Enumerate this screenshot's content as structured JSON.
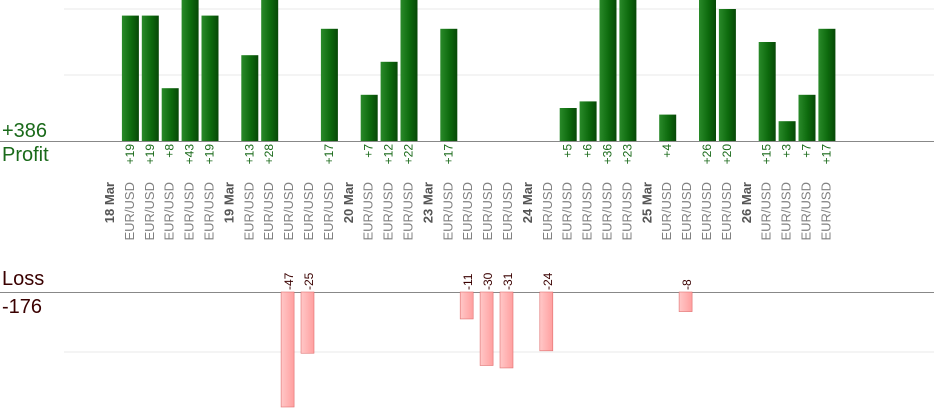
{
  "summary": {
    "profit_total": "+386",
    "profit_label": "Profit",
    "loss_label": "Loss",
    "loss_total": "-176"
  },
  "colors": {
    "profit_bar": "#0d6a0d",
    "profit_bar_dark": "#074807",
    "profit_text": "#1a6a1a",
    "loss_bar": "#ffb5b5",
    "loss_bar_border": "#e07070",
    "loss_text": "#3a0000",
    "axis_text": "#808080",
    "date_text": "#555555",
    "grid": "#e8e8e8",
    "baseline": "#888888"
  },
  "chart_data": {
    "type": "bar",
    "series": [
      {
        "name": "Profit"
      },
      {
        "name": "Loss"
      }
    ],
    "date_groups": [
      {
        "date": "18 Mar",
        "trades": [
          {
            "label": "EUR/USD",
            "value": 19
          },
          {
            "label": "EUR/USD",
            "value": 19
          },
          {
            "label": "EUR/USD",
            "value": 8
          },
          {
            "label": "EUR/USD",
            "value": 43
          },
          {
            "label": "EUR/USD",
            "value": 19
          }
        ]
      },
      {
        "date": "19 Mar",
        "trades": [
          {
            "label": "EUR/USD",
            "value": 13
          },
          {
            "label": "EUR/USD",
            "value": 28
          },
          {
            "label": "EUR/USD",
            "value": -47
          },
          {
            "label": "EUR/USD",
            "value": -25
          },
          {
            "label": "EUR/USD",
            "value": 17
          }
        ]
      },
      {
        "date": "20 Mar",
        "trades": [
          {
            "label": "EUR/USD",
            "value": 7
          },
          {
            "label": "EUR/USD",
            "value": 12
          },
          {
            "label": "EUR/USD",
            "value": 22
          }
        ]
      },
      {
        "date": "23 Mar",
        "trades": [
          {
            "label": "EUR/USD",
            "value": 17
          },
          {
            "label": "EUR/USD",
            "value": -11
          },
          {
            "label": "EUR/USD",
            "value": -30
          },
          {
            "label": "EUR/USD",
            "value": -31
          }
        ]
      },
      {
        "date": "24 Mar",
        "trades": [
          {
            "label": "EUR/USD",
            "value": -24
          },
          {
            "label": "EUR/USD",
            "value": 5
          },
          {
            "label": "EUR/USD",
            "value": 6
          },
          {
            "label": "EUR/USD",
            "value": 36
          },
          {
            "label": "EUR/USD",
            "value": 23
          }
        ]
      },
      {
        "date": "25 Mar",
        "trades": [
          {
            "label": "EUR/USD",
            "value": 4
          },
          {
            "label": "EUR/USD",
            "value": -8
          },
          {
            "label": "EUR/USD",
            "value": 26
          },
          {
            "label": "EUR/USD",
            "value": 20
          }
        ]
      },
      {
        "date": "26 Mar",
        "trades": [
          {
            "label": "EUR/USD",
            "value": 15
          },
          {
            "label": "EUR/USD",
            "value": 3
          },
          {
            "label": "EUR/USD",
            "value": 7
          },
          {
            "label": "EUR/USD",
            "value": 17
          }
        ]
      }
    ],
    "profit_axis_visible_max": 21,
    "loss_axis_visible_min": -42,
    "grid": true
  }
}
